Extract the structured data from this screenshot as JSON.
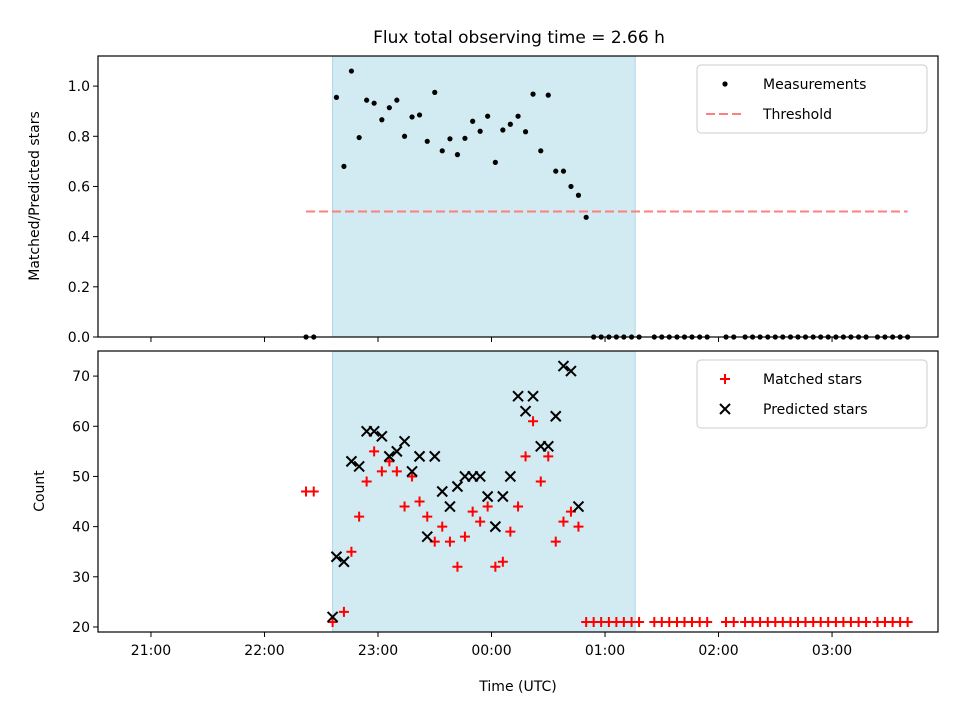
{
  "figure": {
    "title": "Flux total observing time = 2.66 h",
    "xlabel": "Time (UTC)"
  },
  "colors": {
    "shade": "#add8e6",
    "threshold": "#ff7f7f",
    "matched": "#ff0000",
    "predicted": "#000000",
    "measurements": "#000000"
  },
  "chart_data": [
    {
      "type": "scatter",
      "ylabel": "Matched/Predicted stars",
      "xlim": [
        -0.2333,
        3.4667
      ],
      "ylim": [
        0,
        1.12
      ],
      "yticks": [
        0.0,
        0.2,
        0.4,
        0.6,
        0.8,
        1.0
      ],
      "ytick_labels": [
        "0.0",
        "0.2",
        "0.4",
        "0.6",
        "0.8",
        "1.0"
      ],
      "shaded_region": {
        "x": [
          0.8,
          2.133
        ]
      },
      "legend": {
        "placement": "top-right",
        "entries": [
          "Measurements",
          "Threshold"
        ]
      },
      "threshold": {
        "name": "Threshold",
        "y": 0.5,
        "x": [
          0.683,
          3.333
        ],
        "style": "dashed"
      },
      "series": [
        {
          "name": "Measurements",
          "x": [
            0.683,
            0.717,
            0.817,
            0.85,
            0.883,
            0.917,
            0.95,
            0.983,
            1.017,
            1.05,
            1.083,
            1.117,
            1.15,
            1.183,
            1.217,
            1.25,
            1.283,
            1.317,
            1.35,
            1.383,
            1.417,
            1.45,
            1.483,
            1.517,
            1.55,
            1.583,
            1.617,
            1.65,
            1.683,
            1.717,
            1.75,
            1.783,
            1.817,
            1.85,
            1.883,
            1.917,
            1.95,
            1.983,
            2.017,
            2.05,
            2.083,
            2.117,
            2.15,
            2.217,
            2.25,
            2.283,
            2.317,
            2.35,
            2.383,
            2.417,
            2.45,
            2.533,
            2.567,
            2.617,
            2.65,
            2.683,
            2.717,
            2.75,
            2.783,
            2.817,
            2.85,
            2.883,
            2.917,
            2.95,
            2.983,
            3.017,
            3.05,
            3.083,
            3.117,
            3.15,
            3.2,
            3.233,
            3.267,
            3.3,
            3.333
          ],
          "values": [
            0.0,
            0.0,
            0.955,
            0.68,
            1.06,
            0.795,
            0.944,
            0.932,
            0.866,
            0.914,
            0.944,
            0.8,
            0.877,
            0.885,
            0.78,
            0.975,
            0.742,
            0.79,
            0.727,
            0.792,
            0.86,
            0.82,
            0.88,
            0.696,
            0.825,
            0.848,
            0.88,
            0.818,
            0.968,
            0.742,
            0.964,
            0.661,
            0.661,
            0.6,
            0.565,
            0.477,
            0.0,
            0.0,
            0.0,
            0.0,
            0.0,
            0.0,
            0.0,
            0.0,
            0.0,
            0.0,
            0.0,
            0.0,
            0.0,
            0.0,
            0.0,
            0.0,
            0.0,
            0.0,
            0.0,
            0.0,
            0.0,
            0.0,
            0.0,
            0.0,
            0.0,
            0.0,
            0.0,
            0.0,
            0.0,
            0.0,
            0.0,
            0.0,
            0.0,
            0.0,
            0.0,
            0.0,
            0.0,
            0.0,
            0.0
          ]
        }
      ]
    },
    {
      "type": "scatter",
      "ylabel": "Count",
      "xlim": [
        -0.2333,
        3.4667
      ],
      "ylim": [
        19.0,
        75.0
      ],
      "yticks": [
        20,
        30,
        40,
        50,
        60,
        70
      ],
      "ytick_labels": [
        "20",
        "30",
        "40",
        "50",
        "60",
        "70"
      ],
      "xticks": [
        0,
        0.5,
        1,
        1.5,
        2,
        2.5,
        3
      ],
      "xtick_labels": [
        "21:00",
        "22:00",
        "23:00",
        "00:00",
        "01:00",
        "02:00",
        "03:00"
      ],
      "shaded_region": {
        "x": [
          0.8,
          2.133
        ]
      },
      "legend": {
        "placement": "top-right",
        "entries": [
          "Matched stars",
          "Predicted stars"
        ]
      },
      "series": [
        {
          "name": "Matched stars",
          "marker": "plus",
          "x": [
            0.683,
            0.717,
            0.8,
            0.85,
            0.883,
            0.917,
            0.95,
            0.983,
            1.017,
            1.05,
            1.083,
            1.117,
            1.15,
            1.183,
            1.217,
            1.25,
            1.283,
            1.317,
            1.35,
            1.383,
            1.417,
            1.45,
            1.483,
            1.517,
            1.55,
            1.583,
            1.617,
            1.65,
            1.683,
            1.717,
            1.75,
            1.783,
            1.817,
            1.85,
            1.883,
            1.917,
            1.95,
            1.983,
            2.017,
            2.05,
            2.083,
            2.117,
            2.15,
            2.217,
            2.25,
            2.283,
            2.317,
            2.35,
            2.383,
            2.417,
            2.45,
            2.533,
            2.567,
            2.617,
            2.65,
            2.683,
            2.717,
            2.75,
            2.783,
            2.817,
            2.85,
            2.883,
            2.917,
            2.95,
            2.983,
            3.017,
            3.05,
            3.083,
            3.117,
            3.15,
            3.2,
            3.233,
            3.267,
            3.3,
            3.333
          ],
          "values": [
            47,
            47,
            21,
            23,
            35,
            42,
            49,
            55,
            51,
            53,
            51,
            44,
            50,
            45,
            42,
            37,
            40,
            37,
            32,
            38,
            43,
            41,
            44,
            32,
            33,
            39,
            44,
            54,
            61,
            49,
            54,
            37,
            41,
            43,
            40,
            21,
            21,
            21,
            21,
            21,
            21,
            21,
            21,
            21,
            21,
            21,
            21,
            21,
            21,
            21,
            21,
            21,
            21,
            21,
            21,
            21,
            21,
            21,
            21,
            21,
            21,
            21,
            21,
            21,
            21,
            21,
            21,
            21,
            21,
            21,
            21,
            21,
            21,
            21,
            21
          ]
        },
        {
          "name": "Predicted stars",
          "marker": "x",
          "x": [
            0.8,
            0.817,
            0.85,
            0.883,
            0.917,
            0.95,
            0.983,
            1.017,
            1.05,
            1.083,
            1.117,
            1.15,
            1.183,
            1.217,
            1.25,
            1.283,
            1.317,
            1.35,
            1.383,
            1.417,
            1.45,
            1.483,
            1.517,
            1.55,
            1.583,
            1.617,
            1.65,
            1.683,
            1.717,
            1.75,
            1.783,
            1.817,
            1.85,
            1.883,
            1.917
          ],
          "values": [
            22,
            34,
            33,
            53,
            52,
            59,
            59,
            58,
            54,
            55,
            57,
            51,
            54,
            38,
            54,
            47,
            44,
            48,
            50,
            50,
            50,
            46,
            40,
            46,
            50,
            66,
            63,
            66,
            56,
            56,
            62,
            72,
            71,
            44,
            null
          ]
        }
      ]
    }
  ]
}
